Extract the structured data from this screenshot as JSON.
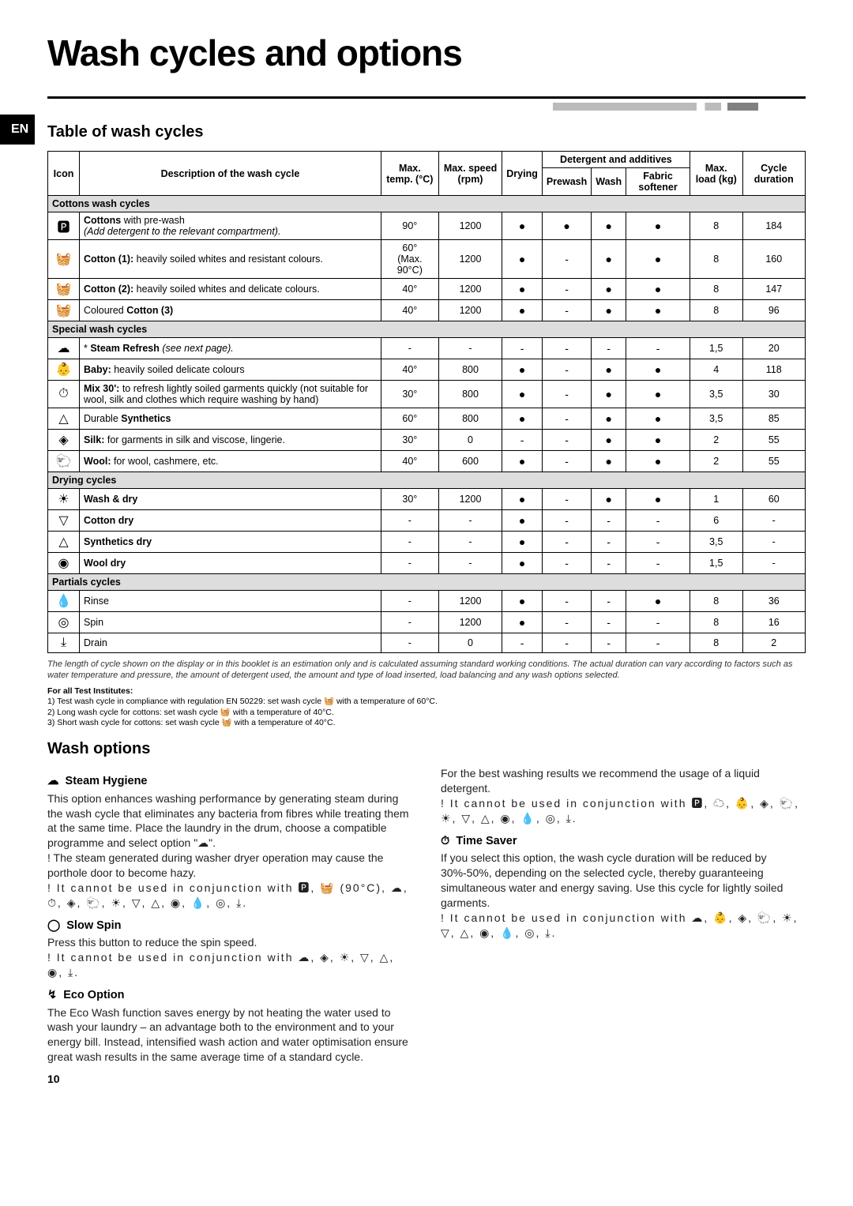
{
  "page": {
    "title": "Wash cycles and options",
    "lang_badge": "EN",
    "section_title": "Table of wash cycles",
    "page_number": "10"
  },
  "table": {
    "headers": {
      "icon": "Icon",
      "desc": "Description of the wash cycle",
      "temp": "Max. temp. (°C)",
      "speed": "Max. speed (rpm)",
      "drying": "Drying",
      "det_group": "Detergent and additives",
      "prewash": "Prewash",
      "wash": "Wash",
      "softener": "Fabric softener",
      "load": "Max. load (kg)",
      "duration": "Cycle duration"
    },
    "groups": [
      {
        "title": "Cottons wash cycles",
        "rows": [
          {
            "icon": "🅿",
            "desc_html": "<b>Cottons</b> with pre-wash<br><i>(Add detergent to the relevant compartment).</i>",
            "temp": "90°",
            "speed": "1200",
            "dry": "●",
            "pre": "●",
            "wash": "●",
            "soft": "●",
            "load": "8",
            "dur": "184"
          },
          {
            "icon": "🧺",
            "desc_html": "<b>Cotton (1):</b> heavily soiled whites and resistant colours.",
            "temp": "60°<br>(Max. 90°C)",
            "speed": "1200",
            "dry": "●",
            "pre": "-",
            "wash": "●",
            "soft": "●",
            "load": "8",
            "dur": "160"
          },
          {
            "icon": "🧺",
            "desc_html": "<b>Cotton (2):</b> heavily soiled whites and delicate colours.",
            "temp": "40°",
            "speed": "1200",
            "dry": "●",
            "pre": "-",
            "wash": "●",
            "soft": "●",
            "load": "8",
            "dur": "147"
          },
          {
            "icon": "🧺",
            "desc_html": "Coloured <b>Cotton (3)</b>",
            "temp": "40°",
            "speed": "1200",
            "dry": "●",
            "pre": "-",
            "wash": "●",
            "soft": "●",
            "load": "8",
            "dur": "96"
          }
        ]
      },
      {
        "title": "Special wash cycles",
        "rows": [
          {
            "icon": "☁",
            "desc_html": "* <b>Steam Refresh</b> <i>(see next page).</i>",
            "temp": "-",
            "speed": "-",
            "dry": "-",
            "pre": "-",
            "wash": "-",
            "soft": "-",
            "load": "1,5",
            "dur": "20"
          },
          {
            "icon": "👶",
            "desc_html": "<b>Baby:</b> heavily soiled delicate colours",
            "temp": "40°",
            "speed": "800",
            "dry": "●",
            "pre": "-",
            "wash": "●",
            "soft": "●",
            "load": "4",
            "dur": "118"
          },
          {
            "icon": "⏱",
            "desc_html": "<b>Mix 30':</b> to refresh lightly soiled garments quickly (not suitable for wool, silk and clothes which require washing by hand)",
            "temp": "30°",
            "speed": "800",
            "dry": "●",
            "pre": "-",
            "wash": "●",
            "soft": "●",
            "load": "3,5",
            "dur": "30"
          },
          {
            "icon": "△",
            "desc_html": "Durable <b>Synthetics</b>",
            "temp": "60°",
            "speed": "800",
            "dry": "●",
            "pre": "-",
            "wash": "●",
            "soft": "●",
            "load": "3,5",
            "dur": "85"
          },
          {
            "icon": "◈",
            "desc_html": "<b>Silk:</b> for garments in silk and viscose, lingerie.",
            "temp": "30°",
            "speed": "0",
            "dry": "-",
            "pre": "-",
            "wash": "●",
            "soft": "●",
            "load": "2",
            "dur": "55"
          },
          {
            "icon": "🐑",
            "desc_html": "<b>Wool:</b> for wool, cashmere, etc.",
            "temp": "40°",
            "speed": "600",
            "dry": "●",
            "pre": "-",
            "wash": "●",
            "soft": "●",
            "load": "2",
            "dur": "55"
          }
        ]
      },
      {
        "title": "Drying cycles",
        "rows": [
          {
            "icon": "☀",
            "desc_html": "<b>Wash & dry</b>",
            "temp": "30°",
            "speed": "1200",
            "dry": "●",
            "pre": "-",
            "wash": "●",
            "soft": "●",
            "load": "1",
            "dur": "60"
          },
          {
            "icon": "▽",
            "desc_html": "<b>Cotton dry</b>",
            "temp": "-",
            "speed": "-",
            "dry": "●",
            "pre": "-",
            "wash": "-",
            "soft": "-",
            "load": "6",
            "dur": "-"
          },
          {
            "icon": "△",
            "desc_html": "<b>Synthetics dry</b>",
            "temp": "-",
            "speed": "-",
            "dry": "●",
            "pre": "-",
            "wash": "-",
            "soft": "-",
            "load": "3,5",
            "dur": "-"
          },
          {
            "icon": "◉",
            "desc_html": "<b>Wool dry</b>",
            "temp": "-",
            "speed": "-",
            "dry": "●",
            "pre": "-",
            "wash": "-",
            "soft": "-",
            "load": "1,5",
            "dur": "-"
          }
        ]
      },
      {
        "title": "Partials cycles",
        "rows": [
          {
            "icon": "💧",
            "desc_html": "Rinse",
            "temp": "-",
            "speed": "1200",
            "dry": "●",
            "pre": "-",
            "wash": "-",
            "soft": "●",
            "load": "8",
            "dur": "36"
          },
          {
            "icon": "◎",
            "desc_html": "Spin",
            "temp": "-",
            "speed": "1200",
            "dry": "●",
            "pre": "-",
            "wash": "-",
            "soft": "-",
            "load": "8",
            "dur": "16"
          },
          {
            "icon": "⤓",
            "desc_html": "Drain",
            "temp": "-",
            "speed": "0",
            "dry": "-",
            "pre": "-",
            "wash": "-",
            "soft": "-",
            "load": "8",
            "dur": "2"
          }
        ]
      }
    ]
  },
  "footnote": "The length of cycle shown on the display or in this booklet is an estimation only and is calculated assuming standard working conditions. The actual duration can vary according to factors such as water temperature and pressure, the amount of detergent used, the amount and type of load inserted, load balancing and any wash options selected.",
  "test_notes": {
    "heading": "For all Test Institutes:",
    "l1": "1) Test wash cycle in compliance with regulation EN 50229: set wash cycle 🧺 with a temperature of 60°C.",
    "l2": "2) Long wash cycle for cottons: set wash cycle 🧺 with a temperature of 40°C.",
    "l3": "3) Short wash cycle for cottons: set wash cycle 🧺 with a temperature of 40°C."
  },
  "options_heading": "Wash options",
  "options": {
    "steam": {
      "title": "Steam Hygiene",
      "icon": "☁",
      "body": "This option enhances washing performance by generating steam during the wash cycle that eliminates any bacteria from fibres while treating them at the same time. Place the laundry in the drum, choose a compatible programme and select option \"☁\".",
      "warn1": "! The steam generated during washer dryer operation may cause the porthole door to become hazy.",
      "warn2": "! It cannot be used in conjunction with 🅿, 🧺 (90°C), ☁, ⏱, ◈, 🐑, ☀, ▽, △, ◉, 💧, ◎, ⤓."
    },
    "slow": {
      "title": "Slow Spin",
      "icon": "◯",
      "body": "Press this button to reduce the spin speed.",
      "warn": "! It cannot be used in conjunction with ☁, ◈, ☀, ▽, △, ◉, ⤓."
    },
    "eco": {
      "title": "Eco Option",
      "icon": "↯",
      "body": "The Eco Wash function saves energy by not heating the water used to wash your laundry – an advantage both to the environment and to your energy bill. Instead, intensified wash action and water optimisation ensure great wash results in the same average time of a standard cycle."
    },
    "eco2": {
      "intro": "For the best washing results we recommend the usage of a liquid detergent.",
      "warn": "! It cannot be used in conjunction with 🅿, ☁, 👶, ◈, 🐑, ☀, ▽, △, ◉, 💧, ◎, ⤓."
    },
    "time": {
      "title": "Time Saver",
      "icon": "⏱",
      "body": "If you select this option, the wash cycle duration will be reduced by 30%-50%, depending on the selected cycle, thereby guaranteeing simultaneous water and energy saving. Use this cycle for lightly soiled garments.",
      "warn": "! It cannot be used in conjunction with ☁, 👶, ◈, 🐑, ☀, ▽, △, ◉, 💧, ◎, ⤓."
    }
  }
}
